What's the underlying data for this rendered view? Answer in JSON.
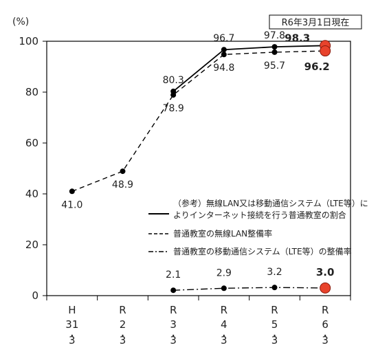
{
  "chart_data": {
    "type": "line",
    "unit": "(%)",
    "date_note": "R6年3月1日現在",
    "ylim": [
      0,
      100
    ],
    "yticks": [
      0,
      20,
      40,
      60,
      80,
      100
    ],
    "categories": [
      [
        "H",
        "31",
        "3"
      ],
      [
        "R",
        "2",
        "3"
      ],
      [
        "R",
        "3",
        "3"
      ],
      [
        "R",
        "4",
        "3"
      ],
      [
        "R",
        "5",
        "3"
      ],
      [
        "R",
        "6",
        "3"
      ]
    ],
    "series": [
      {
        "name": "（参考）無線LAN又は移動通信システム（LTE等）によりインターネット接続を行う普通教室の割合",
        "name_lines": [
          "（参考）無線LAN又は移動通信システム（LTE等）に",
          "よりインターネット接続を行う普通教室の割合"
        ],
        "style": "solid",
        "values": [
          null,
          null,
          80.3,
          96.7,
          97.8,
          98.3
        ],
        "labels": [
          "",
          "",
          "80.3",
          "96.7",
          "97.8",
          "98.3"
        ]
      },
      {
        "name": "普通教室の無線LAN整備率",
        "name_lines": [
          "普通教室の無線LAN整備率"
        ],
        "style": "dashed",
        "values": [
          41.0,
          48.9,
          78.9,
          94.8,
          95.7,
          96.2
        ],
        "labels": [
          "41.0",
          "48.9",
          "78.9",
          "94.8",
          "95.7",
          "96.2"
        ]
      },
      {
        "name": "普通教室の移動通信システム（LTE等）の整備率",
        "name_lines": [
          "普通教室の移動通信システム（LTE等）の整備率"
        ],
        "style": "dashdot",
        "values": [
          null,
          null,
          2.1,
          2.9,
          3.2,
          3.0
        ],
        "labels": [
          "",
          "",
          "2.1",
          "2.9",
          "3.2",
          "3.0"
        ]
      }
    ],
    "highlight_color": "#e8432c",
    "line_color": "#000000"
  }
}
